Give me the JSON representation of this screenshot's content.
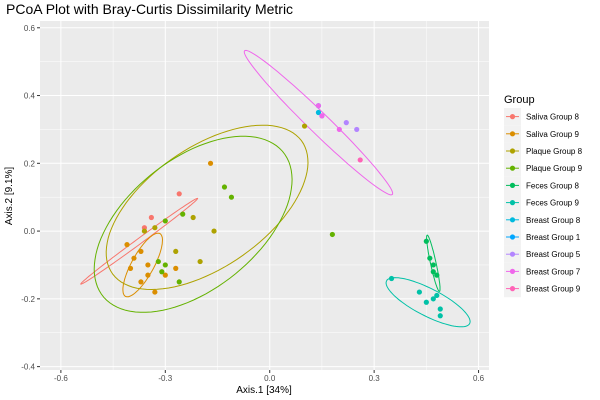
{
  "chart_data": {
    "type": "scatter",
    "title": "PCoA Plot with Bray-Curtis Dissimilarity Metric",
    "xlabel": "Axis.1   [34%]",
    "ylabel": "Axis.2   [9.1%]",
    "xlim": [
      -0.66,
      0.63
    ],
    "ylim": [
      -0.41,
      0.62
    ],
    "x_ticks": [
      -0.6,
      -0.3,
      0.0,
      0.3,
      0.6
    ],
    "x_tick_labels": [
      "-0.6",
      "-0.3",
      "0.0",
      "0.3",
      "0.6"
    ],
    "y_ticks": [
      -0.4,
      -0.2,
      0.0,
      0.2,
      0.4,
      0.6
    ],
    "y_tick_labels": [
      "-0.4",
      "-0.2",
      "0.0",
      "0.2",
      "0.4",
      "0.6"
    ],
    "grid": true,
    "legend_title": "Group",
    "legend_position": "right",
    "panel_background": "#ebebeb",
    "gridline_color": "#ffffff",
    "series": [
      {
        "name": "Saliva Group 8",
        "color": "#F8766D",
        "points": [
          [
            -0.26,
            0.11
          ],
          [
            -0.34,
            0.04
          ],
          [
            -0.36,
            0.01
          ]
        ],
        "ellipse": {
          "cx": -0.375,
          "cy": -0.03,
          "rx": 0.21,
          "ry": 0.008,
          "angle_deg": 37
        }
      },
      {
        "name": "Saliva Group 9",
        "color": "#DB8E00",
        "points": [
          [
            -0.41,
            -0.04
          ],
          [
            -0.37,
            -0.06
          ],
          [
            -0.39,
            -0.08
          ],
          [
            -0.4,
            -0.11
          ],
          [
            -0.35,
            -0.1
          ],
          [
            -0.35,
            -0.13
          ],
          [
            -0.37,
            -0.15
          ],
          [
            -0.33,
            -0.18
          ],
          [
            -0.3,
            -0.13
          ],
          [
            -0.27,
            -0.11
          ],
          [
            -0.17,
            0.2
          ]
        ],
        "ellipse": {
          "cx": -0.365,
          "cy": -0.1,
          "rx": 0.105,
          "ry": 0.032,
          "angle_deg": 62
        }
      },
      {
        "name": "Plaque Group 8",
        "color": "#AEA200",
        "points": [
          [
            -0.33,
            0.01
          ],
          [
            -0.36,
            0.0
          ],
          [
            -0.27,
            -0.06
          ],
          [
            -0.16,
            0.0
          ],
          [
            0.1,
            0.31
          ],
          [
            -0.2,
            -0.09
          ],
          [
            -0.22,
            0.04
          ]
        ],
        "ellipse": {
          "cx": -0.18,
          "cy": 0.07,
          "rx": 0.335,
          "ry": 0.175,
          "angle_deg": 36
        }
      },
      {
        "name": "Plaque Group 9",
        "color": "#64B200",
        "points": [
          [
            -0.13,
            0.13
          ],
          [
            -0.11,
            0.1
          ],
          [
            -0.25,
            0.05
          ],
          [
            -0.3,
            0.03
          ],
          [
            -0.31,
            -0.12
          ],
          [
            -0.26,
            -0.15
          ],
          [
            0.18,
            -0.01
          ],
          [
            -0.32,
            -0.09
          ],
          [
            -0.3,
            -0.1
          ]
        ],
        "ellipse": {
          "cx": -0.22,
          "cy": 0.02,
          "rx": 0.335,
          "ry": 0.19,
          "angle_deg": 40
        }
      },
      {
        "name": "Feces Group 8",
        "color": "#00BD5C",
        "points": [
          [
            0.45,
            -0.03
          ],
          [
            0.46,
            -0.08
          ],
          [
            0.47,
            -0.1
          ],
          [
            0.47,
            -0.12
          ],
          [
            0.48,
            -0.13
          ]
        ],
        "ellipse": {
          "cx": 0.47,
          "cy": -0.095,
          "rx": 0.085,
          "ry": 0.008,
          "angle_deg": -78
        }
      },
      {
        "name": "Feces Group 9",
        "color": "#00C1A7",
        "points": [
          [
            0.35,
            -0.14
          ],
          [
            0.43,
            -0.18
          ],
          [
            0.45,
            -0.21
          ],
          [
            0.47,
            -0.2
          ],
          [
            0.48,
            -0.19
          ],
          [
            0.49,
            -0.23
          ],
          [
            0.49,
            -0.25
          ]
        ],
        "ellipse": {
          "cx": 0.455,
          "cy": -0.21,
          "rx": 0.135,
          "ry": 0.04,
          "angle_deg": -28
        }
      },
      {
        "name": "Breast Group 8",
        "color": "#00BADE",
        "points": [
          [
            0.14,
            0.35
          ]
        ],
        "ellipse": null
      },
      {
        "name": "Breast Group 1",
        "color": "#00A6FF",
        "points": [
          [
            0.14,
            0.37
          ]
        ],
        "ellipse": null
      },
      {
        "name": "Breast Group 5",
        "color": "#B385FF",
        "points": [
          [
            0.15,
            0.34
          ],
          [
            0.22,
            0.32
          ],
          [
            0.25,
            0.3
          ]
        ],
        "ellipse": null
      },
      {
        "name": "Breast Group 7",
        "color": "#EF67EB",
        "points": [
          [
            0.2,
            0.3
          ],
          [
            0.14,
            0.37
          ],
          [
            0.15,
            0.34
          ]
        ],
        "ellipse": {
          "cx": 0.14,
          "cy": 0.32,
          "rx": 0.3,
          "ry": 0.03,
          "angle_deg": -45
        }
      },
      {
        "name": "Breast Group 9",
        "color": "#FF63B6",
        "points": [
          [
            0.26,
            0.21
          ]
        ],
        "ellipse": null
      }
    ]
  }
}
